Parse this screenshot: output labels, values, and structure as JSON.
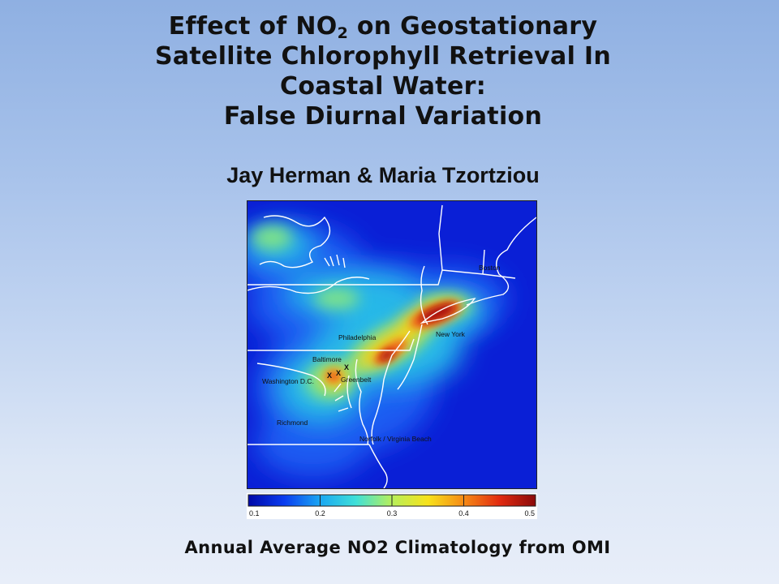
{
  "slide": {
    "title_line1_prefix": "Effect of NO",
    "title_line1_sub": "2",
    "title_line1_suffix": " on Geostationary",
    "title_line2": "Satellite Chlorophyll Retrieval In",
    "title_line3": "Coastal Water:",
    "title_line4": "False Diurnal Variation",
    "authors": "Jay Herman & Maria Tzortziou",
    "caption": "Annual Average NO2 Climatology from OMI"
  },
  "map": {
    "cities": {
      "boston": "Boston",
      "new_york": "New York",
      "philadelphia": "Philadelphia",
      "baltimore": "Baltimore",
      "washington": "Washington D.C.",
      "greenbelt": "Greenbelt",
      "richmond": "Richmond",
      "norfolk": "Norfolk / Virginia Beach"
    },
    "marker_symbol": "X",
    "colors": {
      "background": "#0a1fd6",
      "low": "#1d5cf2",
      "mid": "#26b8e8",
      "elevated": "#7de28a",
      "high": "#f2d21e",
      "very_high": "#f0661a",
      "max": "#a80d10",
      "outline": "#ffffff"
    }
  },
  "colorbar": {
    "ticks": [
      "0.1",
      "0.2",
      "0.3",
      "0.4",
      "0.5"
    ],
    "min": 0.1,
    "max": 0.5,
    "stops": [
      "#0008a8",
      "#0a3cf0",
      "#1aa7f2",
      "#3fe0d8",
      "#b7ef5a",
      "#f7e21b",
      "#f68a16",
      "#e12a10",
      "#8a0a0a"
    ]
  }
}
